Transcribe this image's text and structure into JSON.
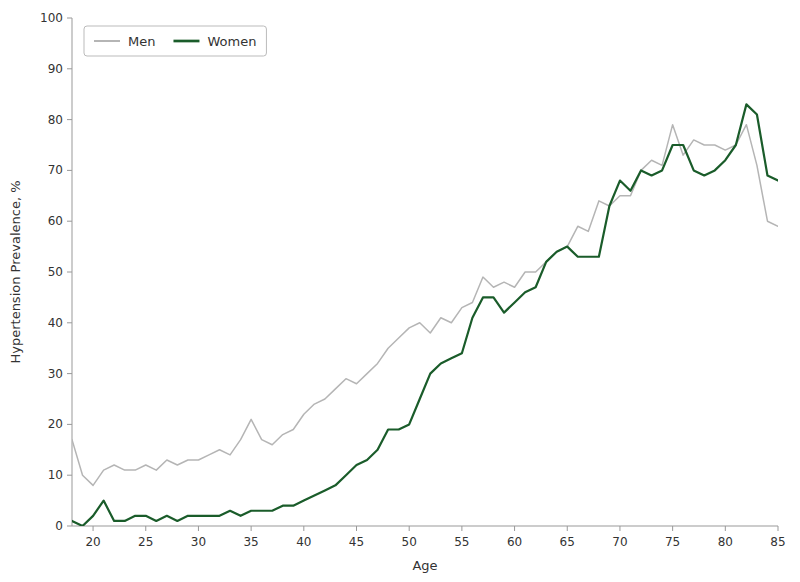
{
  "chart_data": {
    "type": "line",
    "xlabel": "Age",
    "ylabel": "Hypertension Prevalence, %",
    "x": [
      18,
      19,
      20,
      21,
      22,
      23,
      24,
      25,
      26,
      27,
      28,
      29,
      30,
      31,
      32,
      33,
      34,
      35,
      36,
      37,
      38,
      39,
      40,
      41,
      42,
      43,
      44,
      45,
      46,
      47,
      48,
      49,
      50,
      51,
      52,
      53,
      54,
      55,
      56,
      57,
      58,
      59,
      60,
      61,
      62,
      63,
      64,
      65,
      66,
      67,
      68,
      69,
      70,
      71,
      72,
      73,
      74,
      75,
      76,
      77,
      78,
      79,
      80,
      81,
      82,
      83,
      84,
      85
    ],
    "series": [
      {
        "name": "Men",
        "color": "#b5b5b5",
        "values": [
          17,
          10,
          8,
          11,
          12,
          11,
          11,
          12,
          11,
          13,
          12,
          13,
          13,
          14,
          15,
          14,
          17,
          21,
          17,
          16,
          18,
          19,
          22,
          24,
          25,
          27,
          29,
          28,
          30,
          32,
          35,
          37,
          39,
          40,
          38,
          41,
          40,
          43,
          44,
          49,
          47,
          48,
          47,
          50,
          50,
          52,
          54,
          55,
          59,
          58,
          64,
          63,
          65,
          65,
          70,
          72,
          71,
          79,
          73,
          76,
          75,
          75,
          74,
          75,
          79,
          71,
          60,
          59
        ]
      },
      {
        "name": "Women",
        "color": "#1a5c2a",
        "values": [
          1,
          0,
          2,
          5,
          1,
          1,
          2,
          2,
          1,
          2,
          1,
          2,
          2,
          2,
          2,
          3,
          2,
          3,
          3,
          3,
          4,
          4,
          5,
          6,
          7,
          8,
          10,
          12,
          13,
          15,
          19,
          19,
          20,
          25,
          30,
          32,
          33,
          34,
          41,
          45,
          45,
          42,
          44,
          46,
          47,
          52,
          54,
          55,
          53,
          53,
          53,
          63,
          68,
          66,
          70,
          69,
          70,
          75,
          75,
          70,
          69,
          70,
          72,
          75,
          83,
          81,
          69,
          68
        ]
      }
    ],
    "xlim": [
      18,
      85
    ],
    "ylim": [
      0,
      100
    ],
    "xticks": [
      20,
      25,
      30,
      35,
      40,
      45,
      50,
      55,
      60,
      65,
      70,
      75,
      80,
      85
    ],
    "yticks": [
      0,
      10,
      20,
      30,
      40,
      50,
      60,
      70,
      80,
      90,
      100
    ],
    "grid": false,
    "legend": "upper-left"
  }
}
